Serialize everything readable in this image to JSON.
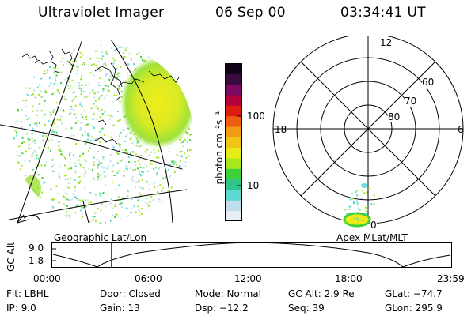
{
  "header": {
    "title": "Ultraviolet Imager",
    "date": "06 Sep 00",
    "time": "03:34:41 UT"
  },
  "left_panel": {
    "label": "Geographic Lat/Lon"
  },
  "right_panel": {
    "label": "Apex MLat/MLT",
    "mlt_labels": [
      "12",
      "18",
      "6",
      "0"
    ],
    "lat_labels": [
      "60",
      "70",
      "80"
    ]
  },
  "colorbar": {
    "unit_label": "photon cm⁻²s⁻¹",
    "tick_labels": [
      "100",
      "10"
    ],
    "colors": [
      "#e8eef3",
      "#bfe0ea",
      "#5fd9d5",
      "#2ec48a",
      "#3fd13a",
      "#a8e61e",
      "#e6ec15",
      "#f0c51a",
      "#f39a16",
      "#ee5d12",
      "#df1d0f",
      "#b3003a",
      "#7c0a62",
      "#3a0a3e",
      "#100518"
    ]
  },
  "timeline": {
    "axis_label": "GC Alt",
    "y_ticks": [
      "9.0",
      "1.8"
    ],
    "x_ticks": [
      "00:00",
      "06:00",
      "12:00",
      "18:00",
      "23:59"
    ],
    "current_time_fraction": 0.149
  },
  "info": {
    "flt": "Flt: LBHL",
    "door": "Door: Closed",
    "mode": "Mode: Normal",
    "gc_alt": "GC Alt: 2.9 Re",
    "glat": "GLat: −74.7",
    "ip": "IP:  9.0",
    "gain": "Gain: 13",
    "dsp": "Dsp:  −12.2",
    "seq": "Seq: 39",
    "glon": "GLon: 295.9"
  },
  "colors": {
    "marker": "#d00000"
  }
}
